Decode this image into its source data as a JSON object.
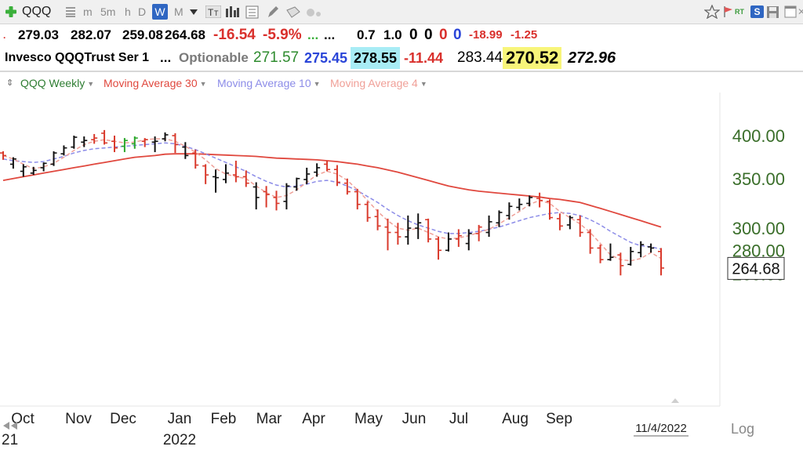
{
  "toolbar": {
    "symbol": "QQQ",
    "periods": [
      "m",
      "5m",
      "h",
      "D",
      "W",
      "M"
    ],
    "active_period": "W",
    "icons": [
      "plus-icon",
      "grid-icon",
      "dropdown-icon",
      "text-tool-icon",
      "bar-chart-icon",
      "calculator-icon",
      "pencil-icon",
      "tag-icon",
      "circle-icon",
      "star-icon",
      "alert-flag-icon",
      "rt-badge-icon",
      "s-badge-icon",
      "save-icon",
      "window-icon",
      "close-icon"
    ],
    "rt_label": "RT",
    "s_label": "S"
  },
  "quote_row1": {
    "open": "279.03",
    "high": "282.07",
    "low": "259.08",
    "close": "264.68",
    "change": "-16.54",
    "change_pct": "-5.9%",
    "dots1": "...",
    "dots2": "...",
    "v1": "0.7",
    "v2": "1.0",
    "c1": "0",
    "c2": "0",
    "c3": "0",
    "c4": "0",
    "n1": "-18.99",
    "n2": "-1.25"
  },
  "quote_row2": {
    "name": "Invesco QQQTrust Ser 1",
    "dots": "...",
    "optionable": "Optionable",
    "p1": "271.57",
    "p2": "275.45",
    "p3": "278.55",
    "p4": "-11.44",
    "p5": "283.44",
    "p6": "270.52",
    "p7": "272.96"
  },
  "legend": {
    "series": [
      {
        "label": "QQQ Weekly",
        "color": "#2e7d32"
      },
      {
        "label": "Moving Average 30",
        "color": "#e0483e"
      },
      {
        "label": "Moving Average 10",
        "color": "#8c8ce8"
      },
      {
        "label": "Moving Average 4",
        "color": "#f0a098"
      }
    ]
  },
  "colors": {
    "up_bar": "#111111",
    "down_bar": "#d93a2c",
    "green_bar": "#2aa62a",
    "ma30": "#e0483e",
    "ma10": "#8c8ce8",
    "ma4": "#f0a098",
    "axis_label": "#3a6e2a",
    "quote_red": "#d9302c",
    "quote_blue": "#2a45d8",
    "highlight_cyan": "#a8ecf5",
    "highlight_yellow": "#f8f57a"
  },
  "chart_data": {
    "type": "ohlc",
    "scale": "log",
    "ylim": [
      250,
      425
    ],
    "y_ticks": [
      260,
      280,
      300,
      350,
      400
    ],
    "y_tick_labels": [
      "260.00",
      "280.00",
      "300.00",
      "350.00",
      "400.00"
    ],
    "x_month_labels": [
      "Oct",
      "Nov",
      "Dec",
      "Jan",
      "Feb",
      "Mar",
      "Apr",
      "May",
      "Jun",
      "Jul",
      "Aug",
      "Sep"
    ],
    "year_label": "2022",
    "left_year_label": "21",
    "last_price_label": "264.68",
    "date_label": "11/4/2022",
    "scale_label": "Log",
    "bars": [
      {
        "o": 379,
        "h": 381,
        "l": 371,
        "c": 376,
        "color": "down"
      },
      {
        "o": 366,
        "h": 374,
        "l": 361,
        "c": 372,
        "color": "up"
      },
      {
        "o": 358,
        "h": 366,
        "l": 352,
        "c": 363,
        "color": "up"
      },
      {
        "o": 356,
        "h": 363,
        "l": 354,
        "c": 359,
        "color": "up"
      },
      {
        "o": 362,
        "h": 368,
        "l": 358,
        "c": 367,
        "color": "up"
      },
      {
        "o": 366,
        "h": 381,
        "l": 364,
        "c": 379,
        "color": "up"
      },
      {
        "o": 378,
        "h": 388,
        "l": 376,
        "c": 385,
        "color": "up"
      },
      {
        "o": 386,
        "h": 400,
        "l": 384,
        "c": 398,
        "color": "up"
      },
      {
        "o": 392,
        "h": 399,
        "l": 386,
        "c": 394,
        "color": "up"
      },
      {
        "o": 395,
        "h": 402,
        "l": 390,
        "c": 397,
        "color": "down"
      },
      {
        "o": 403,
        "h": 407,
        "l": 389,
        "c": 391,
        "color": "down"
      },
      {
        "o": 393,
        "h": 400,
        "l": 380,
        "c": 385,
        "color": "down"
      },
      {
        "o": 387,
        "h": 397,
        "l": 380,
        "c": 394,
        "color": "green"
      },
      {
        "o": 390,
        "h": 399,
        "l": 384,
        "c": 397,
        "color": "green"
      },
      {
        "o": 393,
        "h": 397,
        "l": 386,
        "c": 395,
        "color": "down"
      },
      {
        "o": 392,
        "h": 399,
        "l": 380,
        "c": 393,
        "color": "up"
      },
      {
        "o": 396,
        "h": 404,
        "l": 393,
        "c": 401,
        "color": "up"
      },
      {
        "o": 400,
        "h": 403,
        "l": 379,
        "c": 389,
        "color": "down"
      },
      {
        "o": 386,
        "h": 392,
        "l": 372,
        "c": 376,
        "color": "up"
      },
      {
        "o": 379,
        "h": 383,
        "l": 361,
        "c": 365,
        "color": "down"
      },
      {
        "o": 364,
        "h": 366,
        "l": 344,
        "c": 354,
        "color": "down"
      },
      {
        "o": 352,
        "h": 360,
        "l": 335,
        "c": 351,
        "color": "up"
      },
      {
        "o": 349,
        "h": 366,
        "l": 345,
        "c": 356,
        "color": "up"
      },
      {
        "o": 354,
        "h": 370,
        "l": 346,
        "c": 352,
        "color": "down"
      },
      {
        "o": 352,
        "h": 359,
        "l": 341,
        "c": 345,
        "color": "down"
      },
      {
        "o": 341,
        "h": 346,
        "l": 318,
        "c": 330,
        "color": "up"
      },
      {
        "o": 336,
        "h": 342,
        "l": 320,
        "c": 333,
        "color": "down"
      },
      {
        "o": 330,
        "h": 337,
        "l": 317,
        "c": 324,
        "color": "down"
      },
      {
        "o": 326,
        "h": 345,
        "l": 318,
        "c": 342,
        "color": "up"
      },
      {
        "o": 341,
        "h": 351,
        "l": 337,
        "c": 350,
        "color": "up"
      },
      {
        "o": 349,
        "h": 362,
        "l": 344,
        "c": 355,
        "color": "up"
      },
      {
        "o": 357,
        "h": 367,
        "l": 352,
        "c": 362,
        "color": "up"
      },
      {
        "o": 366,
        "h": 370,
        "l": 358,
        "c": 360,
        "color": "down"
      },
      {
        "o": 360,
        "h": 365,
        "l": 342,
        "c": 346,
        "color": "down"
      },
      {
        "o": 345,
        "h": 350,
        "l": 333,
        "c": 336,
        "color": "down"
      },
      {
        "o": 336,
        "h": 339,
        "l": 318,
        "c": 323,
        "color": "down"
      },
      {
        "o": 323,
        "h": 326,
        "l": 306,
        "c": 310,
        "color": "down"
      },
      {
        "o": 311,
        "h": 318,
        "l": 298,
        "c": 302,
        "color": "down"
      },
      {
        "o": 301,
        "h": 309,
        "l": 280,
        "c": 296,
        "color": "down"
      },
      {
        "o": 296,
        "h": 305,
        "l": 285,
        "c": 292,
        "color": "down"
      },
      {
        "o": 292,
        "h": 312,
        "l": 285,
        "c": 300,
        "color": "up"
      },
      {
        "o": 300,
        "h": 314,
        "l": 290,
        "c": 305,
        "color": "up"
      },
      {
        "o": 308,
        "h": 309,
        "l": 287,
        "c": 290,
        "color": "down"
      },
      {
        "o": 290,
        "h": 292,
        "l": 272,
        "c": 280,
        "color": "down"
      },
      {
        "o": 280,
        "h": 296,
        "l": 279,
        "c": 290,
        "color": "up"
      },
      {
        "o": 290,
        "h": 299,
        "l": 283,
        "c": 293,
        "color": "down"
      },
      {
        "o": 286,
        "h": 299,
        "l": 280,
        "c": 295,
        "color": "up"
      },
      {
        "o": 295,
        "h": 303,
        "l": 288,
        "c": 301,
        "color": "down"
      },
      {
        "o": 296,
        "h": 312,
        "l": 292,
        "c": 306,
        "color": "up"
      },
      {
        "o": 305,
        "h": 317,
        "l": 301,
        "c": 315,
        "color": "up"
      },
      {
        "o": 312,
        "h": 325,
        "l": 308,
        "c": 321,
        "color": "up"
      },
      {
        "o": 320,
        "h": 329,
        "l": 317,
        "c": 323,
        "color": "up"
      },
      {
        "o": 324,
        "h": 332,
        "l": 321,
        "c": 330,
        "color": "up"
      },
      {
        "o": 329,
        "h": 335,
        "l": 320,
        "c": 327,
        "color": "down"
      },
      {
        "o": 326,
        "h": 328,
        "l": 308,
        "c": 310,
        "color": "down"
      },
      {
        "o": 309,
        "h": 314,
        "l": 298,
        "c": 302,
        "color": "down"
      },
      {
        "o": 303,
        "h": 312,
        "l": 299,
        "c": 310,
        "color": "up"
      },
      {
        "o": 308,
        "h": 312,
        "l": 292,
        "c": 296,
        "color": "down"
      },
      {
        "o": 296,
        "h": 299,
        "l": 277,
        "c": 282,
        "color": "down"
      },
      {
        "o": 282,
        "h": 285,
        "l": 269,
        "c": 272,
        "color": "down"
      },
      {
        "o": 272,
        "h": 286,
        "l": 271,
        "c": 274,
        "color": "up"
      },
      {
        "o": 276,
        "h": 278,
        "l": 259,
        "c": 267,
        "color": "down"
      },
      {
        "o": 268,
        "h": 283,
        "l": 267,
        "c": 279,
        "color": "up"
      },
      {
        "o": 278,
        "h": 288,
        "l": 274,
        "c": 285,
        "color": "up"
      },
      {
        "o": 283,
        "h": 286,
        "l": 278,
        "c": 282,
        "color": "up"
      },
      {
        "o": 279,
        "h": 282,
        "l": 259,
        "c": 265,
        "color": "down"
      }
    ],
    "ma30": [
      348,
      350,
      352,
      354,
      356,
      358,
      360,
      362,
      364,
      366,
      368,
      370,
      372,
      374,
      375,
      376,
      377.5,
      378,
      378,
      378,
      377.5,
      377,
      376.5,
      376,
      375.5,
      375,
      374,
      373,
      372.5,
      372,
      371.5,
      371,
      370,
      369,
      367.5,
      366,
      364,
      362,
      359.5,
      357,
      354,
      351,
      348,
      345,
      342,
      340,
      338,
      336.5,
      335.5,
      334.5,
      333.5,
      332.5,
      331.5,
      330.5,
      329,
      328,
      326.5,
      325,
      322,
      319,
      316,
      313,
      310,
      307,
      304,
      301
    ],
    "ma10": [
      372,
      370,
      369,
      368,
      369,
      372,
      375,
      379,
      382,
      384,
      385,
      386,
      387,
      388,
      389,
      390,
      391,
      390,
      387,
      383,
      378,
      373,
      368,
      363,
      358,
      352,
      347,
      343,
      341,
      342,
      344,
      347,
      348,
      346,
      342,
      337,
      331,
      325,
      318,
      312,
      307,
      303,
      300,
      297,
      295,
      295,
      296,
      297,
      299,
      301,
      304,
      307,
      310,
      312,
      314,
      315,
      314,
      312,
      308,
      303,
      297,
      292,
      287,
      284,
      283,
      281
    ],
    "ma4": [
      376,
      372,
      366,
      361,
      363,
      367,
      374,
      382,
      389,
      393,
      395,
      393,
      391,
      392,
      395,
      396,
      396,
      393,
      387,
      380,
      371,
      361,
      355,
      352,
      350,
      342,
      335,
      330,
      332,
      338,
      346,
      354,
      358,
      355,
      348,
      338,
      327,
      316,
      307,
      300,
      298,
      300,
      296,
      292,
      290,
      291,
      293,
      296,
      299,
      304,
      310,
      316,
      323,
      327,
      324,
      316,
      310,
      304,
      296,
      286,
      276,
      272,
      271,
      273,
      278,
      273
    ]
  }
}
